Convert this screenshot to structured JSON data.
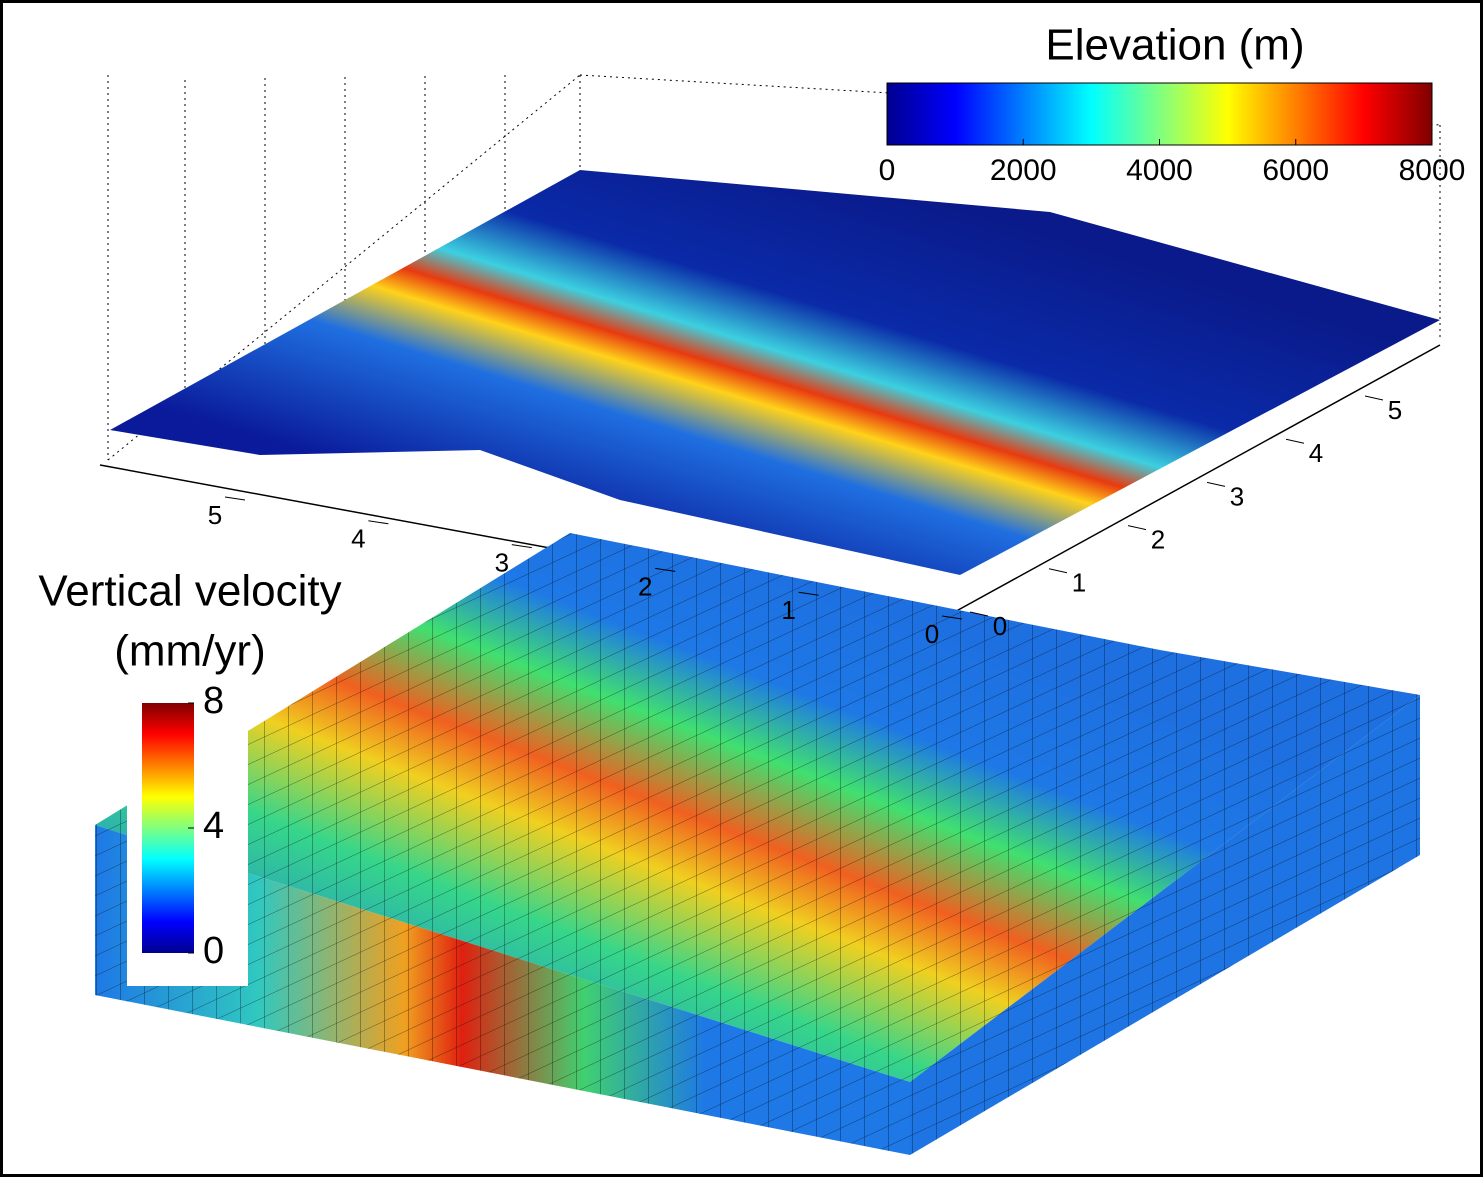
{
  "elevation_colorbar": {
    "title": "Elevation (m)",
    "lim": [
      0,
      8000
    ],
    "ticks": [
      0,
      2000,
      4000,
      6000,
      8000
    ]
  },
  "velocity_colorbar": {
    "title": [
      "Vertical velocity",
      "(mm/yr)"
    ],
    "lim": [
      0,
      8
    ],
    "ticks": [
      0,
      4,
      8
    ]
  },
  "x_axis": {
    "ticks": [
      0,
      1,
      2,
      3,
      4,
      5
    ]
  },
  "y_axis": {
    "ticks": [
      0,
      1,
      2,
      3,
      4,
      5
    ]
  }
}
